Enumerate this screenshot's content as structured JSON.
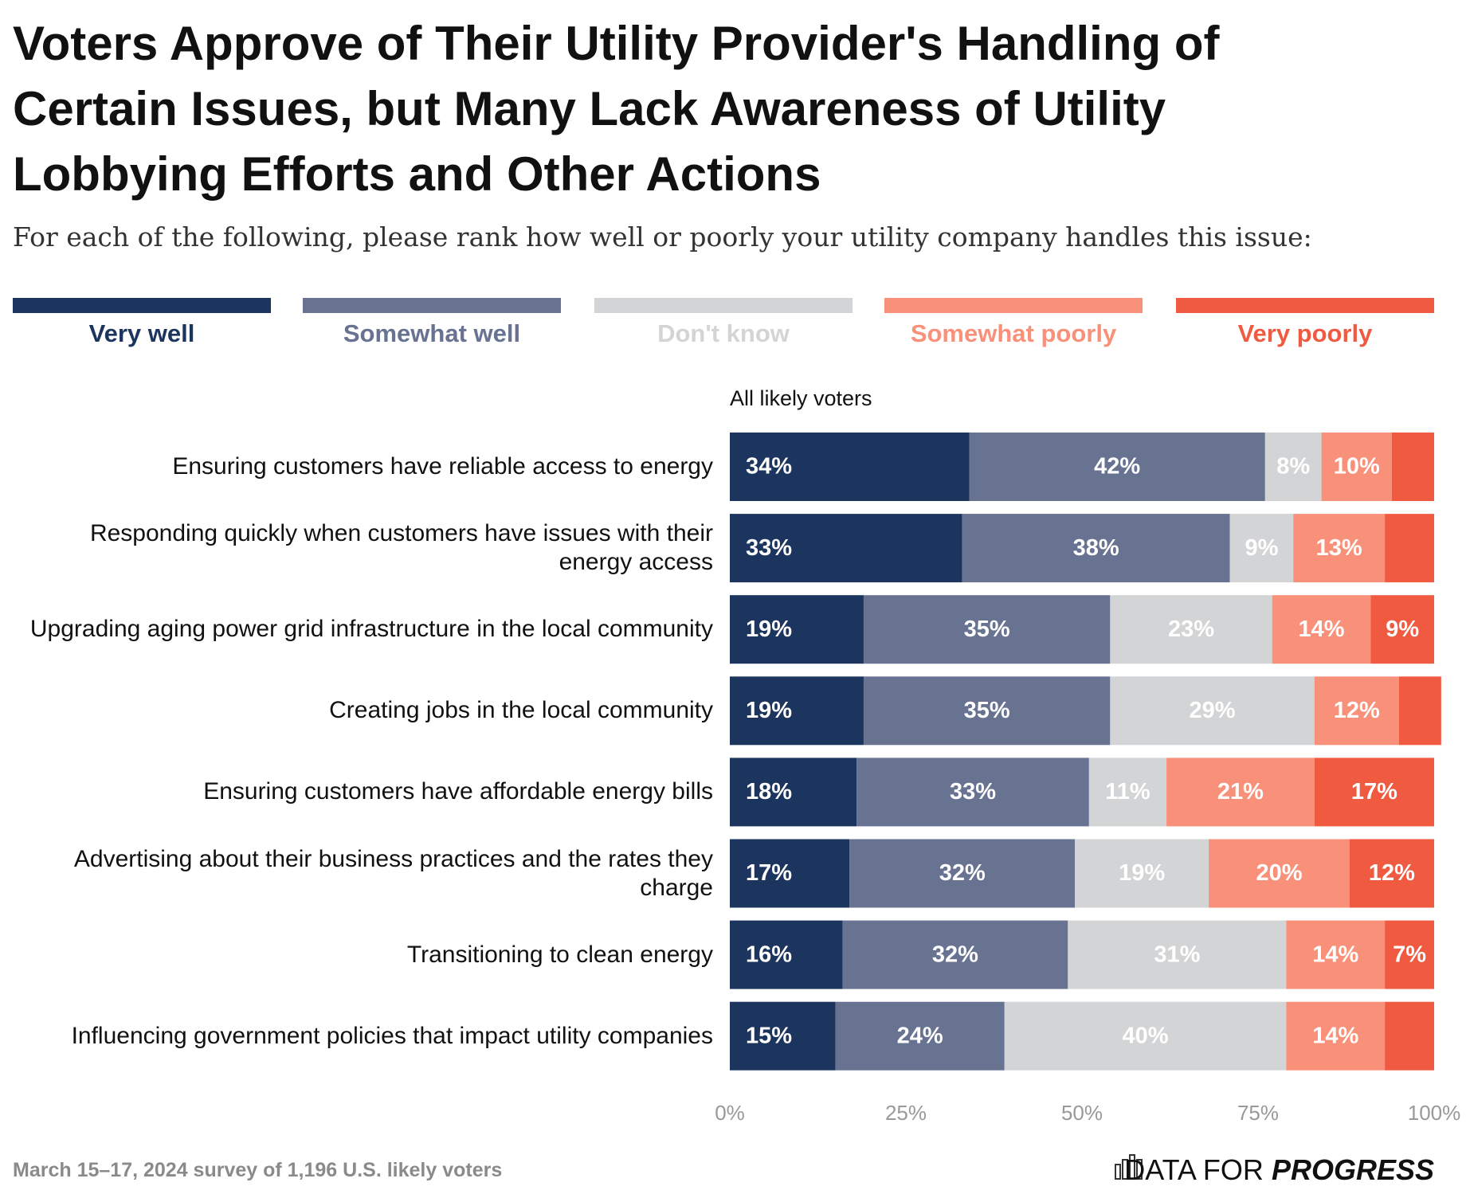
{
  "chart_data": {
    "type": "stacked_bar_horizontal",
    "title": "Voters Approve of Their Utility Provider's Handling of Certain Issues, but Many Lack Awareness of Utility Lobbying Efforts and Other Actions",
    "subtitle": "For each of the following, please rank how well or poorly your utility company handles this issue:",
    "panel_title": "All likely voters",
    "categories": [
      "Ensuring customers have reliable access to energy",
      "Responding quickly when customers have issues with their energy access",
      "Upgrading aging power grid infrastructure in the local community",
      "Creating jobs in the local community",
      "Ensuring customers have affordable energy bills",
      "Advertising about their business practices and the rates they charge",
      "Transitioning to clean energy",
      "Influencing government policies that impact utility companies"
    ],
    "series": [
      {
        "name": "Very well",
        "color": "#1c355e",
        "values": [
          34,
          33,
          19,
          19,
          18,
          17,
          16,
          15
        ],
        "value_labels": [
          "34%",
          "33%",
          "19%",
          "19%",
          "18%",
          "17%",
          "16%",
          "15%"
        ]
      },
      {
        "name": "Somewhat well",
        "color": "#687291",
        "values": [
          42,
          38,
          35,
          35,
          33,
          32,
          32,
          24
        ],
        "value_labels": [
          "42%",
          "38%",
          "35%",
          "35%",
          "33%",
          "32%",
          "32%",
          "24%"
        ]
      },
      {
        "name": "Don't know",
        "color": "#d3d4d6",
        "values": [
          8,
          9,
          23,
          29,
          11,
          19,
          31,
          40
        ],
        "value_labels": [
          "8%",
          "9%",
          "23%",
          "29%",
          "11%",
          "19%",
          "31%",
          "40%"
        ]
      },
      {
        "name": "Somewhat poorly",
        "color": "#f9917a",
        "values": [
          10,
          13,
          14,
          12,
          21,
          20,
          14,
          14
        ],
        "value_labels": [
          "10%",
          "13%",
          "14%",
          "12%",
          "21%",
          "20%",
          "14%",
          "14%"
        ]
      },
      {
        "name": "Very poorly",
        "color": "#f05a40",
        "values": [
          6,
          7,
          9,
          6,
          17,
          12,
          7,
          7
        ],
        "value_labels": [
          null,
          null,
          "9%",
          null,
          "17%",
          "12%",
          "7%",
          null
        ]
      }
    ],
    "xlim": [
      0,
      100
    ],
    "xticks": [
      {
        "value": 0,
        "label": "0%"
      },
      {
        "value": 25,
        "label": "25%"
      },
      {
        "value": 50,
        "label": "50%"
      },
      {
        "value": 75,
        "label": "75%"
      },
      {
        "value": 100,
        "label": "100%"
      }
    ]
  },
  "footer": {
    "source": "March 15–17, 2024 survey of 1,196 U.S. likely voters",
    "brand": "DATA FOR",
    "brand_bold": "PROGRESS"
  }
}
